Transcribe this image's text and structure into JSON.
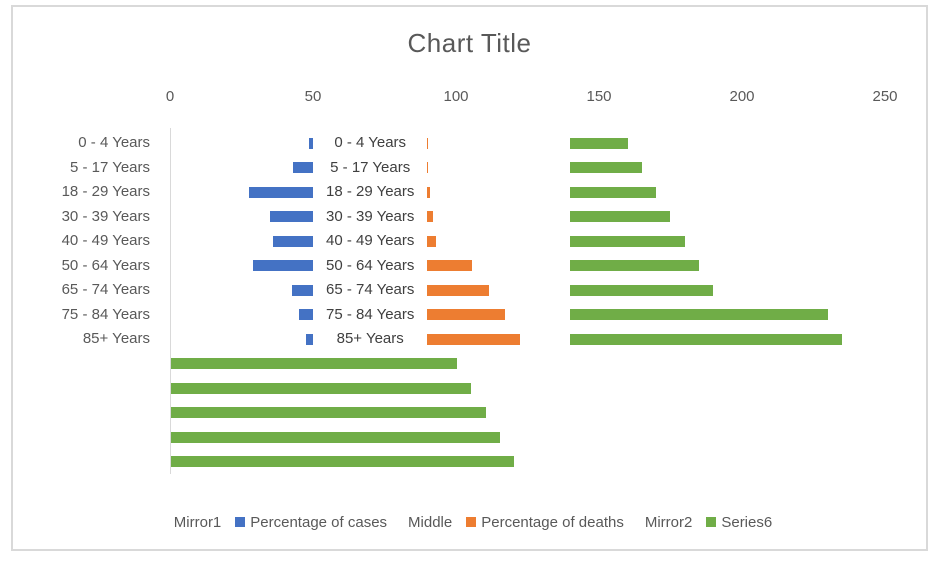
{
  "chart_data": {
    "type": "bar",
    "orientation": "horizontal",
    "subtype": "butterfly (stacked bar with invisible spacer series)",
    "title": "Chart Title",
    "value_axis": {
      "position": "top",
      "min": 0,
      "max": 250,
      "ticks": [
        0,
        50,
        100,
        150,
        200,
        250
      ],
      "gridlines": false
    },
    "categories": [
      "0 - 4 Years",
      "5 - 17 Years",
      "18 - 29 Years",
      "30 - 39 Years",
      "40 - 49 Years",
      "50 - 64 Years",
      "65 - 74 Years",
      "75 - 84 Years",
      "85+ Years"
    ],
    "middle_data_labels": [
      "0 - 4 Years",
      "5 - 17 Years",
      "18 - 29 Years",
      "30 - 39 Years",
      "40 - 49 Years",
      "50 - 64 Years",
      "65 - 74 Years",
      "75 - 84 Years",
      "85+ Years"
    ],
    "series": [
      {
        "name": "Mirror1",
        "visible": false,
        "role": "invisible left spacer so 'Percentage of cases' bars end at value 50"
      },
      {
        "name": "Percentage of cases",
        "color": "#4472C4",
        "bars_end_at": 50,
        "values": [
          1.5,
          7,
          22.5,
          15,
          14,
          21,
          7.5,
          5,
          2.5
        ]
      },
      {
        "name": "Middle",
        "visible": false,
        "role": "invisible spacer from 50 to 90 that carries the category data labels",
        "span": [
          50,
          90
        ]
      },
      {
        "name": "Percentage of deaths",
        "color": "#ED7D31",
        "bars_start_at": 90,
        "values": [
          0.2,
          0.3,
          1,
          2,
          3,
          15.5,
          21.5,
          27,
          32.5
        ]
      },
      {
        "name": "Mirror2",
        "visible": false,
        "role": "invisible spacer so 'Series6' bars start at value 140"
      },
      {
        "name": "Series6",
        "color": "#70AD47",
        "bars_start_at": 140,
        "values": [
          20,
          25,
          30,
          35,
          40,
          45,
          50,
          90,
          95
        ],
        "unlabeled_extra_rows_from_zero": [
          100,
          105,
          110,
          115,
          120
        ]
      }
    ],
    "legend": {
      "position": "bottom",
      "entries": [
        {
          "label": "Mirror1",
          "swatch": null
        },
        {
          "label": "Percentage of cases",
          "swatch": "#4472C4"
        },
        {
          "label": "Middle",
          "swatch": null
        },
        {
          "label": "Percentage of deaths",
          "swatch": "#ED7D31"
        },
        {
          "label": "Mirror2",
          "swatch": null
        },
        {
          "label": "Series6",
          "swatch": "#70AD47"
        }
      ]
    },
    "colors": {
      "title_text": "#595959",
      "axis_text": "#595959",
      "data_label_text": "#404040",
      "axis_line": "#D9D9D9",
      "chart_border": "#D9D9D9",
      "background": "#FFFFFF"
    }
  }
}
